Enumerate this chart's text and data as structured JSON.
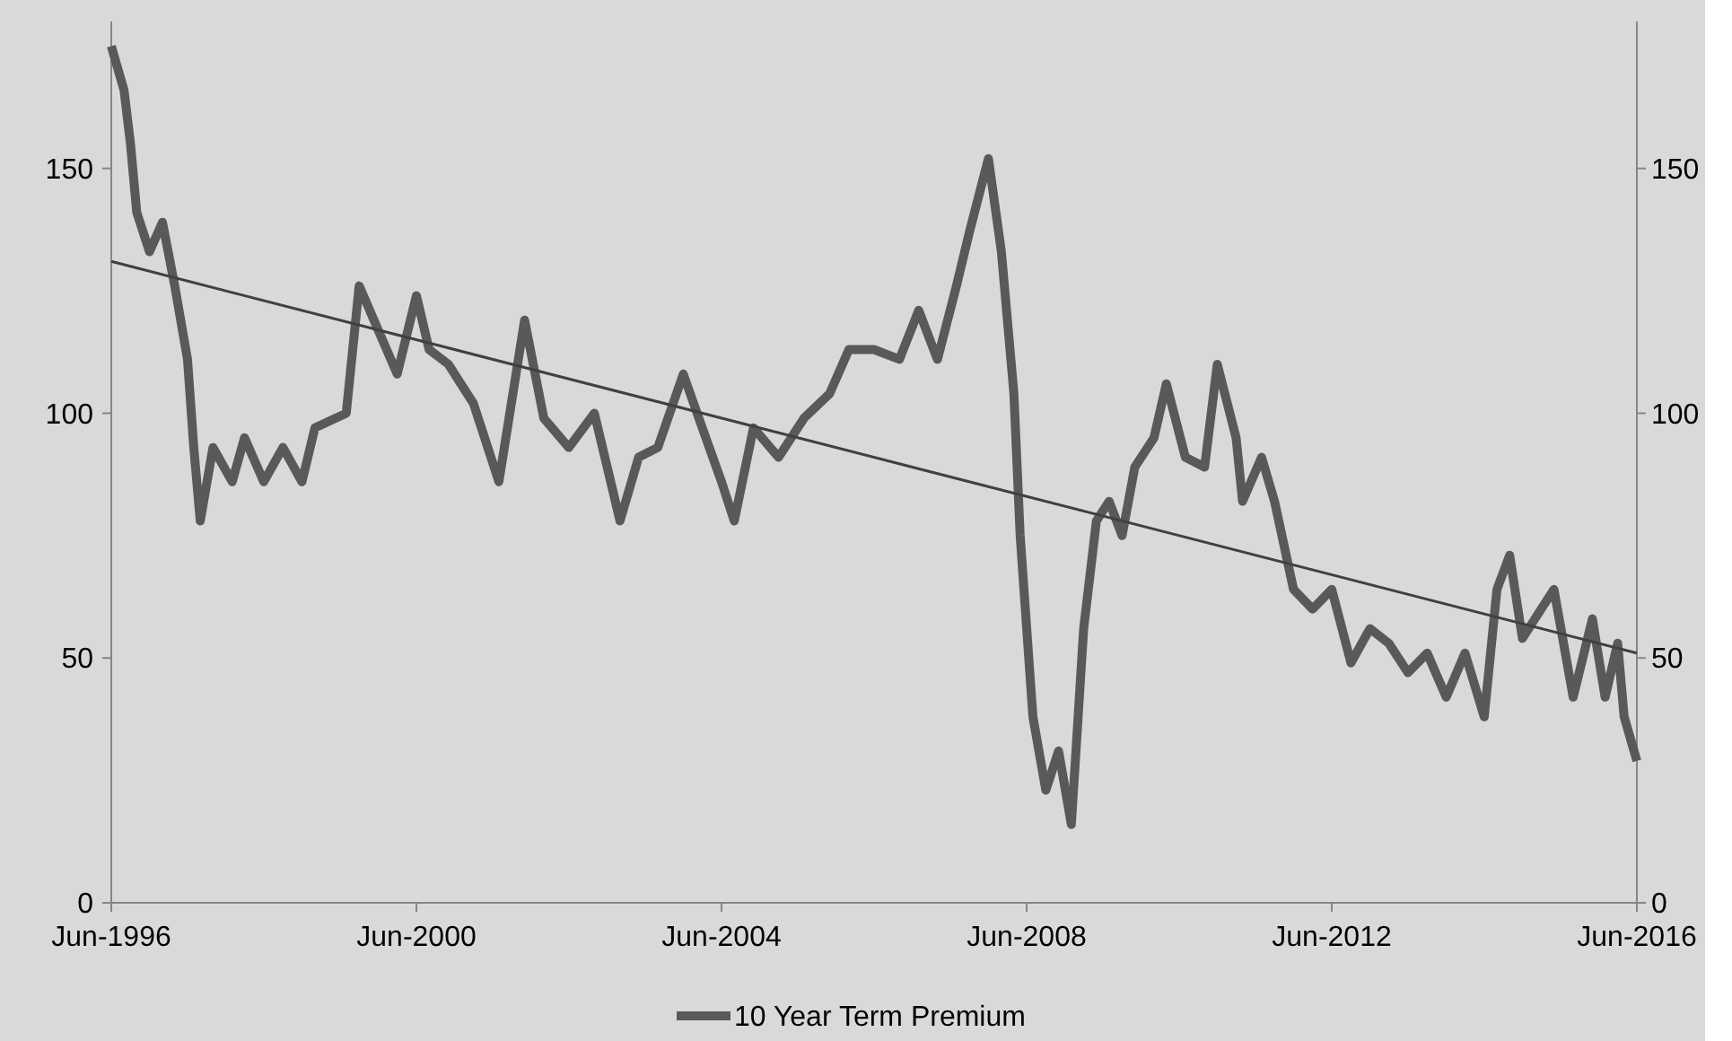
{
  "chart_data": {
    "type": "line",
    "xlim": [
      "1996-06",
      "2016-06"
    ],
    "xticks": [
      {
        "value": "1996-06",
        "label": "Jun-1996"
      },
      {
        "value": "2000-06",
        "label": "Jun-2000"
      },
      {
        "value": "2004-06",
        "label": "Jun-2004"
      },
      {
        "value": "2008-06",
        "label": "Jun-2008"
      },
      {
        "value": "2012-06",
        "label": "Jun-2012"
      },
      {
        "value": "2016-06",
        "label": "Jun-2016"
      }
    ],
    "ylim": [
      0,
      180
    ],
    "yticks": [
      0,
      50,
      100,
      150
    ],
    "y2lim": [
      0,
      180
    ],
    "y2ticks": [
      0,
      50,
      100,
      150
    ],
    "grid": false,
    "legend": "bottom",
    "series": [
      {
        "name": "10 Year Term Premium",
        "color": "#595959",
        "x": [
          "1996-06",
          "1996-08",
          "1996-09",
          "1996-10",
          "1996-12",
          "1997-02",
          "1997-04",
          "1997-06",
          "1997-07",
          "1997-08",
          "1997-10",
          "1998-01",
          "1998-03",
          "1998-06",
          "1998-09",
          "1998-12",
          "1999-02",
          "1999-07",
          "1999-09",
          "1999-12",
          "2000-03",
          "2000-06",
          "2000-08",
          "2000-11",
          "2001-03",
          "2001-07",
          "2001-11",
          "2002-02",
          "2002-06",
          "2002-10",
          "2003-02",
          "2003-05",
          "2003-08",
          "2003-12",
          "2004-03",
          "2004-06",
          "2004-08",
          "2004-11",
          "2005-03",
          "2005-07",
          "2005-11",
          "2006-02",
          "2006-06",
          "2006-10",
          "2007-01",
          "2007-04",
          "2007-07",
          "2007-09",
          "2007-12",
          "2008-02",
          "2008-04",
          "2008-05",
          "2008-07",
          "2008-09",
          "2008-11",
          "2009-01",
          "2009-03",
          "2009-05",
          "2009-07",
          "2009-09",
          "2009-11",
          "2010-02",
          "2010-04",
          "2010-07",
          "2010-10",
          "2010-12",
          "2011-03",
          "2011-04",
          "2011-07",
          "2011-09",
          "2011-12",
          "2012-03",
          "2012-06",
          "2012-09",
          "2012-12",
          "2013-03",
          "2013-06",
          "2013-09",
          "2013-12",
          "2014-03",
          "2014-06",
          "2014-08",
          "2014-10",
          "2014-12",
          "2015-03",
          "2015-05",
          "2015-08",
          "2015-11",
          "2016-01",
          "2016-03",
          "2016-04",
          "2016-06"
        ],
        "values": [
          175,
          166,
          155,
          141,
          133,
          139,
          126,
          111,
          93,
          78,
          93,
          86,
          95,
          86,
          93,
          86,
          97,
          100,
          126,
          117,
          108,
          124,
          113,
          110,
          102,
          86,
          119,
          99,
          93,
          100,
          78,
          91,
          93,
          108,
          97,
          86,
          78,
          97,
          91,
          99,
          104,
          113,
          113,
          111,
          121,
          111,
          126,
          137,
          152,
          133,
          104,
          75,
          38,
          23,
          31,
          16,
          56,
          78,
          82,
          75,
          89,
          95,
          106,
          91,
          89,
          110,
          95,
          82,
          91,
          82,
          64,
          60,
          64,
          49,
          56,
          53,
          47,
          51,
          42,
          51,
          38,
          64,
          71,
          54,
          60,
          64,
          42,
          58,
          42,
          53,
          38,
          29
        ]
      },
      {
        "type": "line",
        "color": "#404040",
        "x": [
          "1996-06",
          "2016-06"
        ],
        "values": [
          131,
          51
        ]
      }
    ]
  }
}
